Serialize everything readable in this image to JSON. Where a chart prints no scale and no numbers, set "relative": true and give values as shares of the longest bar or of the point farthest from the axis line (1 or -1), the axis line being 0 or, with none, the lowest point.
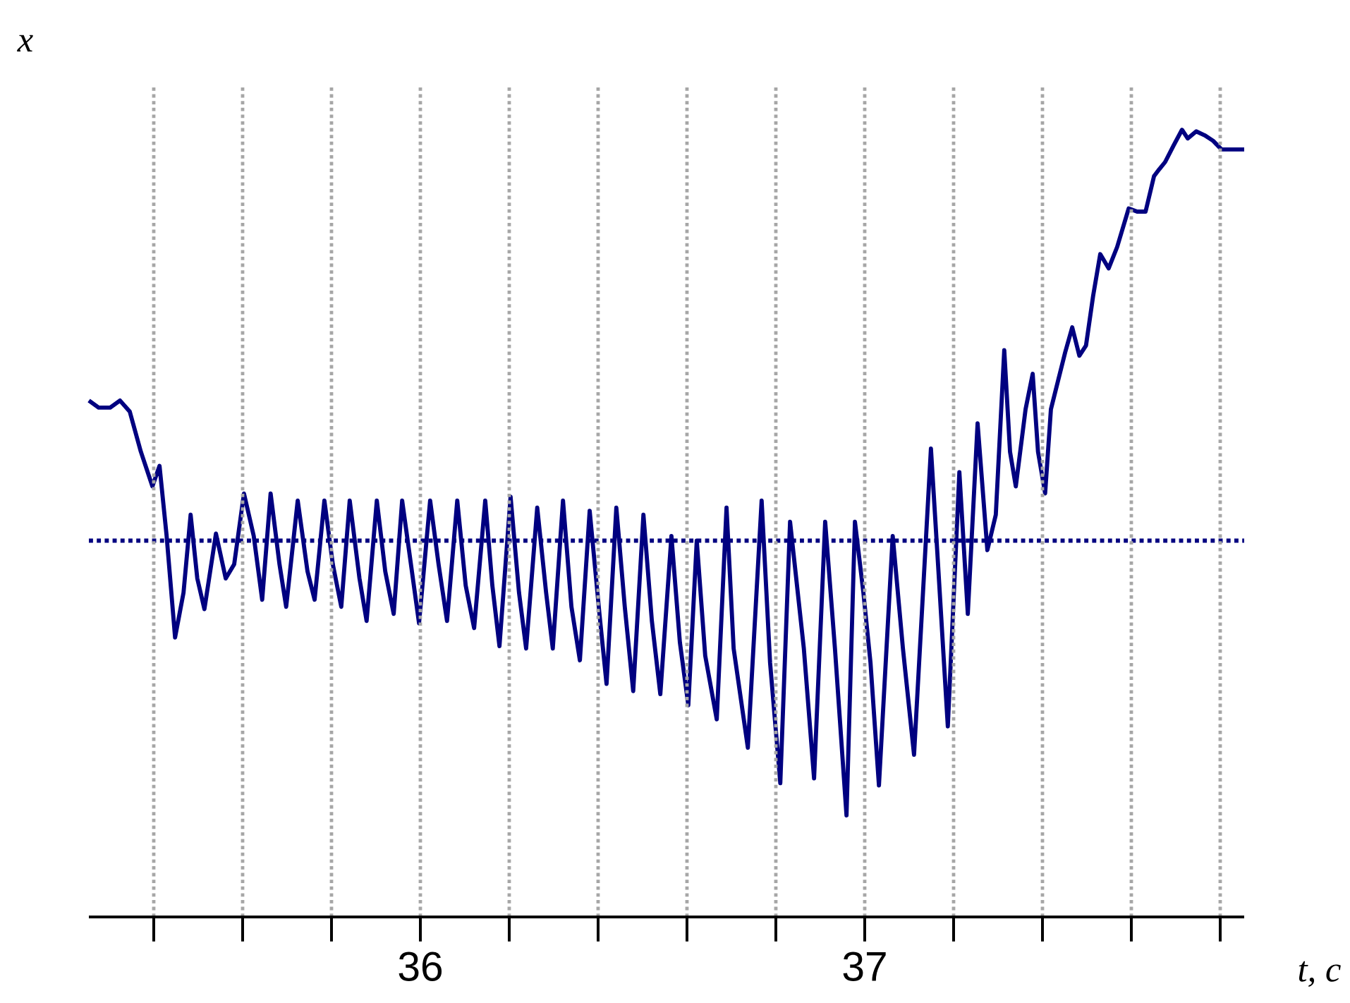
{
  "chart_data": {
    "type": "line",
    "xlabel": "*t, c*",
    "ylabel": "*x*",
    "relative": true,
    "grid": "x",
    "marker": "none",
    "line_style": "solid",
    "xlim": [
      35.254,
      37.854
    ],
    "xticks": [
      {
        "value": 35.4,
        "label": null
      },
      {
        "value": 35.6,
        "label": null
      },
      {
        "value": 35.8,
        "label": null
      },
      36,
      {
        "value": 36.2,
        "label": null
      },
      {
        "value": 36.4,
        "label": null
      },
      {
        "value": 36.6,
        "label": null
      },
      {
        "value": 36.8,
        "label": null
      },
      37,
      {
        "value": 37.2,
        "label": null
      },
      {
        "value": 37.4,
        "label": null
      },
      {
        "value": 37.6,
        "label": null
      },
      {
        "value": 37.8,
        "label": null
      }
    ],
    "ref_lines": [
      {
        "axis": "y",
        "value": 0.478,
        "color": "#000080",
        "line_style": "dotted"
      }
    ],
    "series": [
      {
        "color": "#000080",
        "x": [
          35.254,
          35.276,
          35.302,
          35.324,
          35.346,
          35.371,
          35.397,
          35.413,
          35.429,
          35.448,
          35.467,
          35.483,
          35.498,
          35.514,
          35.54,
          35.562,
          35.581,
          35.603,
          35.625,
          35.644,
          35.663,
          35.683,
          35.698,
          35.724,
          35.746,
          35.762,
          35.784,
          35.803,
          35.822,
          35.841,
          35.863,
          35.879,
          35.902,
          35.921,
          35.94,
          35.959,
          35.981,
          35.997,
          36.022,
          36.041,
          36.06,
          36.083,
          36.102,
          36.121,
          36.146,
          36.162,
          36.178,
          36.203,
          36.222,
          36.238,
          36.263,
          36.283,
          36.298,
          36.321,
          36.34,
          36.359,
          36.381,
          36.403,
          36.419,
          36.441,
          36.46,
          36.479,
          36.502,
          36.521,
          36.54,
          36.565,
          36.584,
          36.603,
          36.622,
          36.641,
          36.667,
          36.689,
          36.705,
          36.737,
          36.768,
          36.787,
          36.81,
          36.832,
          36.863,
          36.886,
          36.911,
          36.933,
          36.959,
          36.978,
          36.997,
          37.013,
          37.032,
          37.063,
          37.086,
          37.111,
          37.149,
          37.165,
          37.187,
          37.213,
          37.232,
          37.254,
          37.276,
          37.295,
          37.314,
          37.327,
          37.34,
          37.362,
          37.378,
          37.39,
          37.406,
          37.419,
          37.435,
          37.451,
          37.467,
          37.483,
          37.498,
          37.514,
          37.53,
          37.549,
          37.568,
          37.594,
          37.613,
          37.632,
          37.651,
          37.663,
          37.676,
          37.695,
          37.714,
          37.727,
          37.746,
          37.765,
          37.784,
          37.803,
          37.854
        ],
        "values": [
          0.656,
          0.647,
          0.647,
          0.656,
          0.642,
          0.591,
          0.547,
          0.573,
          0.484,
          0.355,
          0.412,
          0.511,
          0.43,
          0.391,
          0.487,
          0.43,
          0.448,
          0.538,
          0.484,
          0.403,
          0.538,
          0.448,
          0.394,
          0.529,
          0.439,
          0.403,
          0.529,
          0.448,
          0.394,
          0.529,
          0.43,
          0.376,
          0.529,
          0.439,
          0.385,
          0.529,
          0.439,
          0.373,
          0.529,
          0.448,
          0.376,
          0.529,
          0.421,
          0.367,
          0.529,
          0.421,
          0.344,
          0.534,
          0.412,
          0.341,
          0.52,
          0.412,
          0.341,
          0.529,
          0.394,
          0.326,
          0.516,
          0.385,
          0.296,
          0.52,
          0.394,
          0.287,
          0.511,
          0.376,
          0.283,
          0.484,
          0.349,
          0.269,
          0.478,
          0.332,
          0.251,
          0.52,
          0.341,
          0.215,
          0.529,
          0.323,
          0.17,
          0.502,
          0.341,
          0.176,
          0.502,
          0.341,
          0.129,
          0.502,
          0.412,
          0.323,
          0.167,
          0.484,
          0.341,
          0.206,
          0.595,
          0.448,
          0.242,
          0.565,
          0.385,
          0.627,
          0.466,
          0.511,
          0.72,
          0.591,
          0.547,
          0.645,
          0.69,
          0.591,
          0.538,
          0.645,
          0.681,
          0.717,
          0.749,
          0.713,
          0.726,
          0.789,
          0.842,
          0.824,
          0.851,
          0.9,
          0.896,
          0.896,
          0.941,
          0.95,
          0.959,
          0.98,
          1,
          0.989,
          0.998,
          0.993,
          0.986,
          0.975,
          0.975
        ]
      }
    ]
  }
}
